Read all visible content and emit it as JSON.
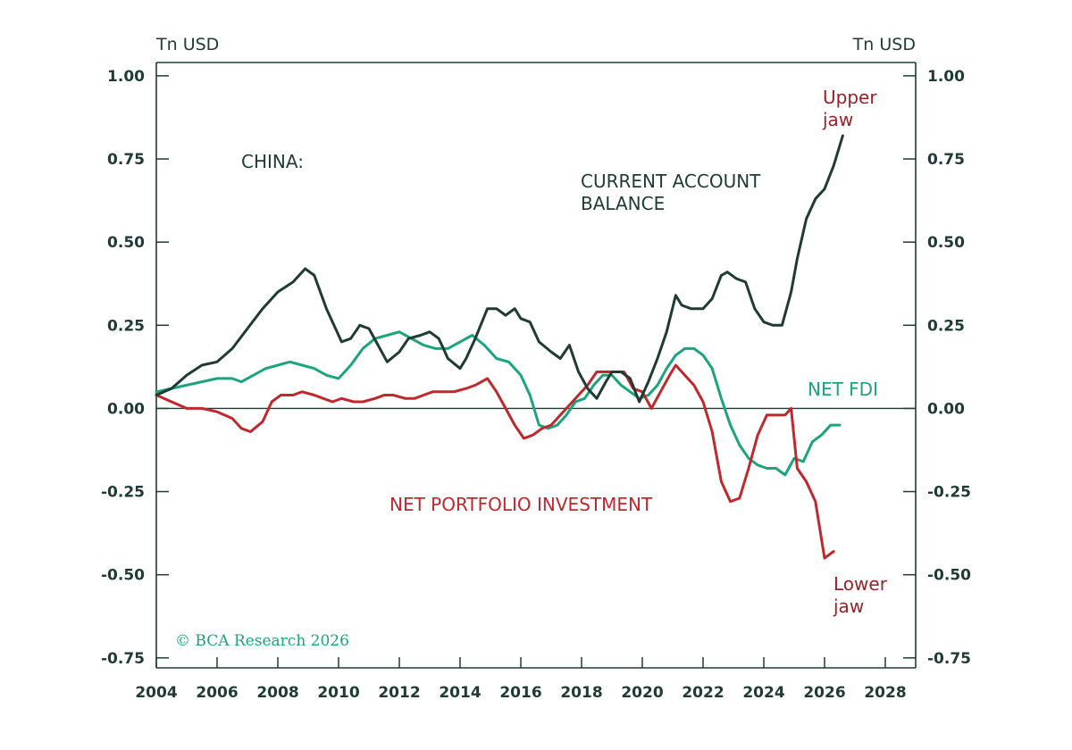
{
  "chart_data": {
    "type": "line",
    "y_unit_left": "Tn USD",
    "y_unit_right": "Tn USD",
    "xlim": [
      2004,
      2029
    ],
    "ylim": [
      -0.78,
      1.04
    ],
    "x_ticks": [
      2004,
      2006,
      2008,
      2010,
      2012,
      2014,
      2016,
      2018,
      2020,
      2022,
      2024,
      2026,
      2028
    ],
    "y_ticks": [
      1.0,
      0.75,
      0.5,
      0.25,
      0.0,
      -0.25,
      -0.5,
      -0.75
    ],
    "y_tick_labels": [
      "1.00",
      "0.75",
      "0.50",
      "0.25",
      "0.00",
      "-0.25",
      "-0.50",
      "-0.75"
    ],
    "zero_line": true,
    "grid": false,
    "colors": {
      "current_account": "#1f3b34",
      "net_fdi": "#1aa57e",
      "net_portfolio": "#c0282d",
      "jaw_label": "#9a2226",
      "axis": "#1f3b34",
      "copyright": "#1aa57e"
    },
    "annotations": {
      "china": "CHINA:",
      "current_account_line1": "CURRENT ACCOUNT",
      "current_account_line2": "BALANCE",
      "net_fdi": "NET FDI",
      "net_portfolio": "NET PORTFOLIO INVESTMENT",
      "upper_jaw_line1": "Upper",
      "upper_jaw_line2": "jaw",
      "lower_jaw_line1": "Lower",
      "lower_jaw_line2": "jaw",
      "copyright": "© BCA Research 2026"
    },
    "series": [
      {
        "key": "current_account",
        "x": [
          2004.0,
          2004.5,
          2005.0,
          2005.5,
          2006.0,
          2006.5,
          2007.0,
          2007.5,
          2008.0,
          2008.5,
          2008.9,
          2009.2,
          2009.6,
          2010.1,
          2010.4,
          2010.7,
          2011.0,
          2011.3,
          2011.6,
          2012.0,
          2012.3,
          2012.7,
          2013.0,
          2013.3,
          2013.6,
          2014.0,
          2014.2,
          2014.5,
          2014.9,
          2015.2,
          2015.5,
          2015.8,
          2016.0,
          2016.3,
          2016.6,
          2017.0,
          2017.3,
          2017.6,
          2017.9,
          2018.2,
          2018.5,
          2018.8,
          2019.0,
          2019.3,
          2019.6,
          2019.9,
          2020.2,
          2020.5,
          2020.8,
          2021.1,
          2021.3,
          2021.6,
          2022.0,
          2022.3,
          2022.6,
          2022.8,
          2023.1,
          2023.4,
          2023.7,
          2024.0,
          2024.3,
          2024.6,
          2024.9,
          2025.1,
          2025.4,
          2025.7,
          2026.0,
          2026.3,
          2026.6
        ],
        "values": [
          0.04,
          0.06,
          0.1,
          0.13,
          0.14,
          0.18,
          0.24,
          0.3,
          0.35,
          0.38,
          0.42,
          0.4,
          0.3,
          0.2,
          0.21,
          0.25,
          0.24,
          0.19,
          0.14,
          0.17,
          0.21,
          0.22,
          0.23,
          0.21,
          0.15,
          0.12,
          0.15,
          0.21,
          0.3,
          0.3,
          0.28,
          0.3,
          0.27,
          0.26,
          0.2,
          0.17,
          0.15,
          0.19,
          0.11,
          0.06,
          0.03,
          0.08,
          0.11,
          0.11,
          0.09,
          0.02,
          0.08,
          0.15,
          0.23,
          0.34,
          0.31,
          0.3,
          0.3,
          0.33,
          0.4,
          0.41,
          0.39,
          0.38,
          0.3,
          0.26,
          0.25,
          0.25,
          0.35,
          0.45,
          0.57,
          0.63,
          0.66,
          0.73,
          0.82
        ]
      },
      {
        "key": "net_fdi",
        "x": [
          2004.0,
          2004.5,
          2005.0,
          2005.5,
          2006.0,
          2006.5,
          2006.8,
          2007.2,
          2007.6,
          2008.0,
          2008.4,
          2008.8,
          2009.2,
          2009.6,
          2010.0,
          2010.4,
          2010.8,
          2011.2,
          2011.6,
          2012.0,
          2012.4,
          2012.8,
          2013.2,
          2013.6,
          2014.0,
          2014.4,
          2014.8,
          2015.2,
          2015.6,
          2016.0,
          2016.3,
          2016.6,
          2016.9,
          2017.2,
          2017.5,
          2017.8,
          2018.1,
          2018.4,
          2018.7,
          2019.0,
          2019.3,
          2019.6,
          2019.9,
          2020.2,
          2020.5,
          2020.8,
          2021.1,
          2021.4,
          2021.7,
          2022.0,
          2022.3,
          2022.6,
          2022.9,
          2023.2,
          2023.5,
          2023.8,
          2024.1,
          2024.4,
          2024.7,
          2025.0,
          2025.3,
          2025.6,
          2025.9,
          2026.2,
          2026.5
        ],
        "values": [
          0.05,
          0.06,
          0.07,
          0.08,
          0.09,
          0.09,
          0.08,
          0.1,
          0.12,
          0.13,
          0.14,
          0.13,
          0.12,
          0.1,
          0.09,
          0.13,
          0.18,
          0.21,
          0.22,
          0.23,
          0.21,
          0.19,
          0.18,
          0.18,
          0.2,
          0.22,
          0.19,
          0.15,
          0.14,
          0.1,
          0.04,
          -0.05,
          -0.06,
          -0.05,
          -0.02,
          0.02,
          0.03,
          0.07,
          0.1,
          0.1,
          0.07,
          0.05,
          0.03,
          0.04,
          0.07,
          0.12,
          0.16,
          0.18,
          0.18,
          0.16,
          0.12,
          0.03,
          -0.05,
          -0.11,
          -0.15,
          -0.17,
          -0.18,
          -0.18,
          -0.2,
          -0.15,
          -0.16,
          -0.1,
          -0.08,
          -0.05,
          -0.05
        ]
      },
      {
        "key": "net_portfolio",
        "x": [
          2004.0,
          2004.5,
          2005.0,
          2005.5,
          2006.0,
          2006.5,
          2006.8,
          2007.1,
          2007.5,
          2007.8,
          2008.1,
          2008.5,
          2008.8,
          2009.2,
          2009.5,
          2009.8,
          2010.1,
          2010.5,
          2010.8,
          2011.2,
          2011.5,
          2011.8,
          2012.2,
          2012.5,
          2012.8,
          2013.1,
          2013.5,
          2013.8,
          2014.2,
          2014.5,
          2014.9,
          2015.2,
          2015.5,
          2015.8,
          2016.1,
          2016.4,
          2016.7,
          2017.0,
          2017.3,
          2017.6,
          2017.9,
          2018.2,
          2018.5,
          2018.8,
          2019.1,
          2019.4,
          2019.7,
          2020.0,
          2020.3,
          2020.6,
          2020.9,
          2021.1,
          2021.4,
          2021.7,
          2022.0,
          2022.3,
          2022.6,
          2022.9,
          2023.2,
          2023.5,
          2023.8,
          2024.1,
          2024.4,
          2024.7,
          2024.9,
          2025.1,
          2025.4,
          2025.7,
          2026.0,
          2026.3
        ],
        "values": [
          0.04,
          0.02,
          0.0,
          0.0,
          -0.01,
          -0.03,
          -0.06,
          -0.07,
          -0.04,
          0.02,
          0.04,
          0.04,
          0.05,
          0.04,
          0.03,
          0.02,
          0.03,
          0.02,
          0.02,
          0.03,
          0.04,
          0.04,
          0.03,
          0.03,
          0.04,
          0.05,
          0.05,
          0.05,
          0.06,
          0.07,
          0.09,
          0.05,
          0.0,
          -0.05,
          -0.09,
          -0.08,
          -0.06,
          -0.05,
          -0.02,
          0.01,
          0.04,
          0.07,
          0.11,
          0.11,
          0.11,
          0.11,
          0.06,
          0.05,
          0.0,
          0.05,
          0.1,
          0.13,
          0.1,
          0.07,
          0.02,
          -0.07,
          -0.22,
          -0.28,
          -0.27,
          -0.18,
          -0.08,
          -0.02,
          -0.02,
          -0.02,
          0.0,
          -0.18,
          -0.22,
          -0.28,
          -0.45,
          -0.43
        ]
      }
    ]
  }
}
